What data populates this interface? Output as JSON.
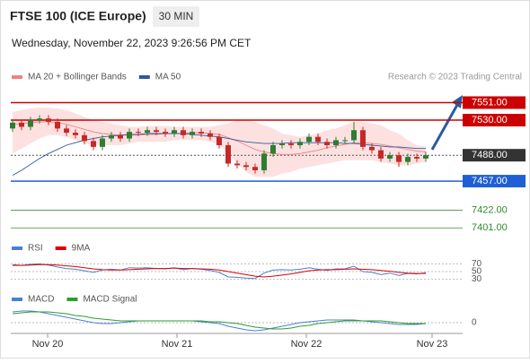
{
  "header": {
    "title": "FTSE 100 (ICE Europe)",
    "timeframe": "30 MIN",
    "datetime": "Wednesday, November 22, 2023 9:26:56 PM CET"
  },
  "chart_data": [
    {
      "type": "candlestick",
      "credit": "Research © 2023 Trading Central",
      "open": [
        7520,
        7527,
        7522,
        7530,
        7532,
        7528,
        7520,
        7515,
        7512,
        7505,
        7498,
        7508,
        7512,
        7508,
        7516,
        7515,
        7518,
        7516,
        7514,
        7518,
        7512,
        7516,
        7514,
        7510,
        7500,
        7478,
        7476,
        7474,
        7470,
        7490,
        7500,
        7502,
        7500,
        7504,
        7510,
        7504,
        7500,
        7506,
        7506,
        7518,
        7498,
        7494,
        7484,
        7488,
        7480,
        7486,
        7484
      ],
      "high": [
        7531,
        7531,
        7534,
        7536,
        7536,
        7532,
        7524,
        7519,
        7516,
        7509,
        7512,
        7516,
        7516,
        7520,
        7520,
        7522,
        7522,
        7520,
        7522,
        7522,
        7520,
        7520,
        7518,
        7514,
        7504,
        7482,
        7480,
        7478,
        7494,
        7504,
        7506,
        7506,
        7508,
        7514,
        7514,
        7508,
        7510,
        7510,
        7528,
        7522,
        7502,
        7498,
        7492,
        7492,
        7490,
        7490,
        7492
      ],
      "low": [
        7516,
        7518,
        7518,
        7526,
        7524,
        7516,
        7511,
        7508,
        7501,
        7494,
        7494,
        7504,
        7504,
        7504,
        7511,
        7511,
        7512,
        7510,
        7510,
        7508,
        7508,
        7510,
        7506,
        7496,
        7474,
        7472,
        7470,
        7466,
        7466,
        7486,
        7496,
        7496,
        7496,
        7500,
        7500,
        7496,
        7496,
        7502,
        7502,
        7494,
        7490,
        7480,
        7480,
        7474,
        7476,
        7480,
        7480
      ],
      "close": [
        7527,
        7522,
        7530,
        7532,
        7528,
        7520,
        7515,
        7512,
        7505,
        7498,
        7508,
        7512,
        7508,
        7516,
        7515,
        7518,
        7516,
        7514,
        7518,
        7512,
        7516,
        7514,
        7510,
        7500,
        7478,
        7476,
        7474,
        7470,
        7490,
        7500,
        7502,
        7500,
        7504,
        7510,
        7504,
        7500,
        7506,
        7506,
        7518,
        7498,
        7494,
        7484,
        7488,
        7480,
        7486,
        7484,
        7488
      ],
      "up_color": "#2e7d32",
      "down_color": "#c62828",
      "bands": {
        "upper": [
          7540,
          7542,
          7544,
          7545,
          7545,
          7544,
          7542,
          7538,
          7534,
          7530,
          7528,
          7526,
          7524,
          7522,
          7522,
          7523,
          7523,
          7523,
          7522,
          7522,
          7522,
          7522,
          7522,
          7524,
          7526,
          7530,
          7530,
          7528,
          7524,
          7520,
          7514,
          7512,
          7510,
          7512,
          7514,
          7518,
          7520,
          7524,
          7528,
          7528,
          7526,
          7524,
          7518,
          7514,
          7506,
          7500,
          7498
        ],
        "lower": [
          7490,
          7496,
          7502,
          7508,
          7512,
          7512,
          7510,
          7506,
          7502,
          7500,
          7500,
          7500,
          7500,
          7502,
          7504,
          7504,
          7504,
          7504,
          7506,
          7506,
          7506,
          7506,
          7504,
          7500,
          7490,
          7478,
          7468,
          7462,
          7462,
          7462,
          7466,
          7468,
          7472,
          7474,
          7476,
          7478,
          7480,
          7482,
          7482,
          7482,
          7482,
          7480,
          7478,
          7476,
          7476,
          7478,
          7480
        ],
        "color": "#fcdada"
      },
      "series": [
        {
          "name": "MA 20 + Bollinger Bands",
          "color": "#f08080",
          "values": [
            7525,
            7526,
            7527,
            7528,
            7528,
            7527,
            7525,
            7522,
            7519,
            7516,
            7514,
            7513,
            7512,
            7512,
            7512,
            7513,
            7513,
            7514,
            7514,
            7514,
            7515,
            7515,
            7514,
            7513,
            7509,
            7505,
            7500,
            7495,
            7492,
            7490,
            7489,
            7489,
            7490,
            7492,
            7494,
            7497,
            7499,
            7501,
            7503,
            7503,
            7502,
            7501,
            7499,
            7497,
            7495,
            7493,
            7492
          ]
        },
        {
          "name": "MA 50",
          "color": "#2c5aa0",
          "values": [
            7464,
            7470,
            7477,
            7484,
            7490,
            7495,
            7500,
            7503,
            7506,
            7508,
            7510,
            7511,
            7512,
            7513,
            7513,
            7514,
            7514,
            7514,
            7514,
            7514,
            7513,
            7512,
            7511,
            7510,
            7508,
            7506,
            7504,
            7503,
            7502,
            7502,
            7502,
            7503,
            7503,
            7503,
            7503,
            7503,
            7503,
            7502,
            7502,
            7501,
            7500,
            7499,
            7498,
            7498,
            7497,
            7496,
            7496
          ]
        }
      ],
      "levels": [
        {
          "value": 7551,
          "label": "7551.00",
          "color": "#cc0000",
          "style": "box"
        },
        {
          "value": 7530,
          "label": "7530.00",
          "color": "#cc0000",
          "style": "box"
        },
        {
          "value": 7488,
          "label": "7488.00",
          "color": "#333333",
          "style": "current"
        },
        {
          "value": 7457,
          "label": "7457.00",
          "color": "#1f5fd6",
          "style": "box"
        },
        {
          "value": 7422,
          "label": "7422.00",
          "color": "#2e8b2e",
          "style": "text"
        },
        {
          "value": 7401,
          "label": "7401.00",
          "color": "#2e8b2e",
          "style": "text"
        }
      ],
      "ylim": [
        7389.5,
        7571.9
      ]
    },
    {
      "type": "line",
      "series": [
        {
          "name": "RSI",
          "color": "#4a7fd4",
          "values": [
            68,
            66,
            69,
            70,
            67,
            62,
            58,
            56,
            52,
            48,
            54,
            56,
            54,
            60,
            59,
            60,
            58,
            57,
            60,
            55,
            58,
            56,
            53,
            48,
            36,
            35,
            33,
            32,
            46,
            54,
            55,
            54,
            56,
            60,
            56,
            53,
            57,
            57,
            64,
            50,
            48,
            42,
            46,
            40,
            45,
            44,
            47
          ]
        },
        {
          "name": "9MA",
          "color": "#dd0000",
          "values": [
            66,
            66,
            67,
            68,
            68,
            67,
            65,
            63,
            60,
            57,
            55,
            54,
            54,
            55,
            56,
            57,
            58,
            58,
            59,
            58,
            58,
            57,
            56,
            54,
            50,
            46,
            42,
            38,
            36,
            38,
            41,
            44,
            48,
            52,
            54,
            55,
            55,
            56,
            57,
            56,
            55,
            53,
            51,
            48,
            46,
            45,
            45
          ]
        }
      ],
      "ylim": [
        15,
        85
      ],
      "yticks": [
        70,
        50,
        30
      ]
    },
    {
      "type": "line",
      "series": [
        {
          "name": "MACD",
          "color": "#4a7fd4",
          "values": [
            12,
            13,
            13,
            12,
            10,
            8,
            6,
            4,
            2,
            0,
            -1,
            -1,
            0,
            1,
            2,
            2,
            2,
            2,
            2,
            2,
            2,
            1,
            0,
            -1,
            -4,
            -6,
            -8,
            -9,
            -8,
            -6,
            -4,
            -2,
            0,
            1,
            2,
            3,
            3,
            3,
            3,
            2,
            1,
            0,
            -1,
            -2,
            -2,
            -2,
            -1
          ]
        },
        {
          "name": "MACD Signal",
          "color": "#2e9e2e",
          "values": [
            10,
            11,
            12,
            12,
            12,
            11,
            10,
            8,
            7,
            5,
            4,
            3,
            2,
            2,
            2,
            2,
            2,
            2,
            2,
            2,
            2,
            2,
            1,
            1,
            0,
            -1,
            -3,
            -5,
            -6,
            -7,
            -7,
            -6,
            -4,
            -3,
            -1,
            0,
            1,
            2,
            2,
            2,
            2,
            2,
            1,
            0,
            -1,
            -1,
            -1
          ]
        }
      ],
      "ylim": [
        -12,
        20
      ],
      "yticks": [
        0
      ],
      "xlim": [
        -0.2,
        50.1
      ],
      "xticks": [
        {
          "value": 3.9,
          "label": "Nov 20"
        },
        {
          "value": 18.3,
          "label": "Nov 21"
        },
        {
          "value": 32.7,
          "label": "Nov 22"
        },
        {
          "value": 46.7,
          "label": "Nov 23"
        }
      ]
    }
  ]
}
